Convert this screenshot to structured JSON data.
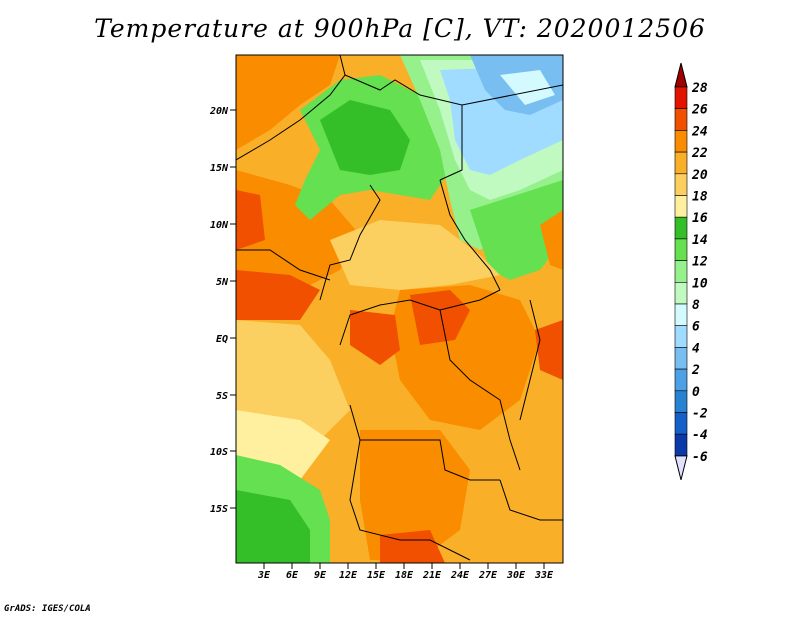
{
  "title": "Temperature at 900hPa [C], VT: 2020012506",
  "credit": "GrADS: IGES/COLA",
  "map": {
    "lat_labels": [
      "20N",
      "15N",
      "10N",
      "5N",
      "EQ",
      "5S",
      "10S",
      "15S"
    ],
    "lon_labels": [
      "3E",
      "6E",
      "9E",
      "12E",
      "15E",
      "18E",
      "21E",
      "24E",
      "27E",
      "30E",
      "33E"
    ]
  },
  "colorbar": {
    "labels": [
      "28",
      "26",
      "24",
      "22",
      "20",
      "18",
      "16",
      "14",
      "12",
      "10",
      "8",
      "6",
      "4",
      "2",
      "0",
      "-2",
      "-4",
      "-6"
    ],
    "colors": [
      "#a00000",
      "#e11400",
      "#f05000",
      "#fa8c00",
      "#faaf28",
      "#fcd060",
      "#fff0a0",
      "#34be28",
      "#64e050",
      "#96f08c",
      "#c0fac0",
      "#d2faff",
      "#a0dcff",
      "#78bef0",
      "#4ba0e6",
      "#2882d2",
      "#1460c8",
      "#0a3aa8",
      "#1e1e78",
      "#e1e1ff"
    ]
  }
}
